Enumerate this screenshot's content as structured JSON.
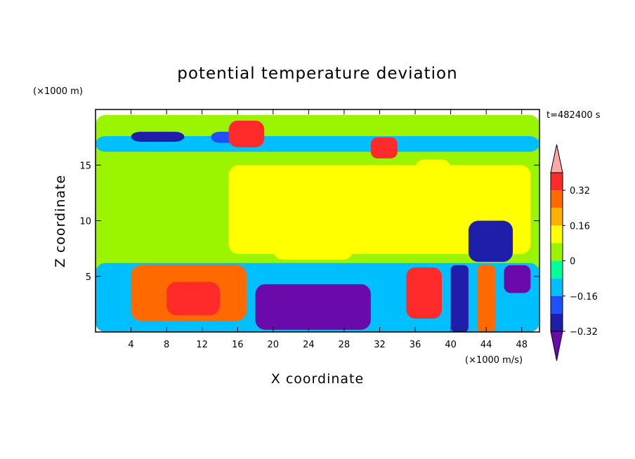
{
  "chart_data": {
    "type": "heatmap",
    "title": "potential temperature deviation",
    "xlabel": "X coordinate",
    "ylabel": "Z coordinate",
    "x_unit": "(×1000 m/s)",
    "y_unit": "(×1000 m)",
    "time_label": "t=482400 s",
    "xlim": [
      0,
      50
    ],
    "ylim": [
      0,
      20
    ],
    "x_ticks": [
      4,
      8,
      12,
      16,
      20,
      24,
      28,
      32,
      36,
      40,
      44,
      48
    ],
    "y_ticks": [
      5,
      10,
      15
    ],
    "colorbar": {
      "ticks": [
        "0.32",
        "0.16",
        "0",
        "−0.16",
        "−0.32"
      ],
      "levels": [
        -0.4,
        -0.32,
        -0.24,
        -0.16,
        -0.08,
        0,
        0.08,
        0.16,
        0.24,
        0.32,
        0.4
      ],
      "colors": [
        "#6a0aab",
        "#1e1eaa",
        "#1f50ff",
        "#00bfff",
        "#00ff9a",
        "#9bf500",
        "#ffff00",
        "#ffb000",
        "#ff6a00",
        "#ff2a2a",
        "#ffa8a8"
      ]
    },
    "regions": [
      {
        "x": [
          0,
          50
        ],
        "z": [
          0,
          19.5
        ],
        "level": 0.04
      },
      {
        "x": [
          0,
          50
        ],
        "z": [
          16.2,
          17.6
        ],
        "level": -0.12
      },
      {
        "x": [
          4,
          10
        ],
        "z": [
          17.1,
          18
        ],
        "level": -0.28
      },
      {
        "x": [
          13,
          17
        ],
        "z": [
          17.0,
          18
        ],
        "level": -0.2
      },
      {
        "x": [
          15,
          49
        ],
        "z": [
          7,
          15
        ],
        "level": 0.12
      },
      {
        "x": [
          20,
          29
        ],
        "z": [
          6.5,
          11
        ],
        "level": 0.14
      },
      {
        "x": [
          36,
          40
        ],
        "z": [
          13.8,
          15.5
        ],
        "level": 0.13
      },
      {
        "x": [
          42,
          47
        ],
        "z": [
          6.3,
          10
        ],
        "level": -0.28
      },
      {
        "x": [
          0,
          50
        ],
        "z": [
          0,
          6.2
        ],
        "level": -0.1
      },
      {
        "x": [
          4,
          17
        ],
        "z": [
          1,
          6
        ],
        "level": 0.3
      },
      {
        "x": [
          8,
          14
        ],
        "z": [
          1.5,
          4.5
        ],
        "level": 0.38
      },
      {
        "x": [
          18,
          31
        ],
        "z": [
          0.2,
          4.3
        ],
        "level": -0.38
      },
      {
        "x": [
          35,
          39
        ],
        "z": [
          1.2,
          5.8
        ],
        "level": 0.38
      },
      {
        "x": [
          40,
          42
        ],
        "z": [
          0,
          6
        ],
        "level": -0.3
      },
      {
        "x": [
          43,
          45
        ],
        "z": [
          0,
          6
        ],
        "level": 0.3
      },
      {
        "x": [
          46,
          49
        ],
        "z": [
          3.5,
          6
        ],
        "level": -0.36
      },
      {
        "x": [
          15,
          19
        ],
        "z": [
          16.6,
          19
        ],
        "level": 0.38
      },
      {
        "x": [
          31,
          34
        ],
        "z": [
          15.6,
          17.5
        ],
        "level": 0.38
      }
    ]
  }
}
